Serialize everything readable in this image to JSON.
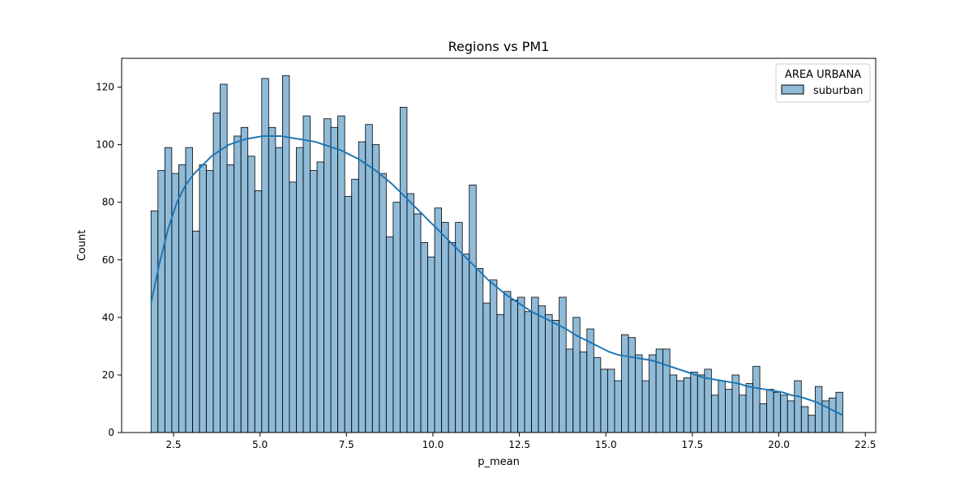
{
  "chart_data": {
    "type": "bar",
    "title": "Regions vs PM1",
    "xlabel": "p_mean",
    "ylabel": "Count",
    "xlim": [
      1.0,
      22.8
    ],
    "ylim": [
      0,
      130
    ],
    "xticks": [
      2.5,
      5.0,
      7.5,
      10.0,
      12.5,
      15.0,
      17.5,
      20.0,
      22.5
    ],
    "xtick_labels": [
      "2.5",
      "5.0",
      "7.5",
      "10.0",
      "12.5",
      "15.0",
      "17.5",
      "20.0",
      "22.5"
    ],
    "yticks": [
      0,
      20,
      40,
      60,
      80,
      100,
      120
    ],
    "ytick_labels": [
      "0",
      "20",
      "40",
      "60",
      "80",
      "100",
      "120"
    ],
    "grid": false,
    "legend": {
      "title": "AREA URBANA",
      "position": "top-right",
      "entries": [
        "suburban"
      ]
    },
    "bin_start": 1.85,
    "bin_width": 0.2,
    "series": [
      {
        "name": "suburban",
        "color": "#1f77b4",
        "fill_opacity": 0.5,
        "values": [
          77,
          91,
          99,
          90,
          93,
          99,
          70,
          93,
          91,
          111,
          121,
          93,
          103,
          106,
          96,
          84,
          123,
          106,
          99,
          124,
          87,
          99,
          110,
          91,
          94,
          109,
          106,
          110,
          82,
          88,
          101,
          107,
          100,
          90,
          68,
          80,
          113,
          83,
          76,
          66,
          61,
          78,
          73,
          66,
          73,
          62,
          86,
          57,
          45,
          53,
          41,
          49,
          46,
          47,
          42,
          47,
          44,
          41,
          39,
          47,
          29,
          40,
          28,
          36,
          26,
          22,
          22,
          18,
          34,
          33,
          27,
          18,
          27,
          29,
          29,
          20,
          18,
          19,
          21,
          20,
          22,
          13,
          18,
          15,
          20,
          13,
          17,
          23,
          10,
          15,
          14,
          13,
          11,
          18,
          9,
          6,
          16,
          11,
          12,
          14
        ],
        "kde": {
          "x": [
            1.85,
            2.1,
            2.35,
            2.6,
            2.85,
            3.1,
            3.35,
            3.6,
            3.85,
            4.1,
            4.35,
            4.6,
            4.85,
            5.1,
            5.35,
            5.6,
            5.85,
            6.1,
            6.35,
            6.6,
            6.85,
            7.1,
            7.35,
            7.6,
            7.85,
            8.1,
            8.35,
            8.6,
            8.85,
            9.1,
            9.35,
            9.6,
            9.85,
            10.1,
            10.35,
            10.6,
            10.85,
            11.1,
            11.35,
            11.6,
            11.85,
            12.1,
            12.35,
            12.6,
            12.85,
            13.1,
            13.35,
            13.6,
            13.85,
            14.1,
            14.35,
            14.6,
            14.85,
            15.1,
            15.35,
            15.6,
            15.85,
            16.1,
            16.35,
            16.6,
            16.85,
            17.1,
            17.35,
            17.6,
            17.85,
            18.1,
            18.35,
            18.6,
            18.85,
            19.1,
            19.35,
            19.6,
            19.85,
            20.1,
            20.35,
            20.6,
            20.85,
            21.1,
            21.35,
            21.6,
            21.85
          ],
          "y": [
            45,
            59,
            71,
            80,
            86,
            90,
            93,
            96,
            98,
            100,
            101,
            102,
            102.5,
            103,
            103,
            103,
            102.5,
            102,
            101.5,
            101,
            100,
            99,
            98,
            96.5,
            95,
            93,
            91,
            88.5,
            86,
            83,
            80,
            77,
            74,
            71,
            68,
            65,
            62,
            59,
            56,
            53,
            50.5,
            48,
            46,
            44,
            42,
            40.5,
            39,
            37.5,
            36,
            34,
            32.5,
            31,
            29.5,
            28,
            27,
            26.5,
            26,
            25.5,
            25,
            24,
            23,
            22,
            21,
            20,
            19,
            18.5,
            18,
            17.5,
            17,
            16,
            15.5,
            15,
            14.5,
            14,
            13,
            12.5,
            11.5,
            10.5,
            9,
            7.5,
            6
          ]
        }
      }
    ]
  }
}
